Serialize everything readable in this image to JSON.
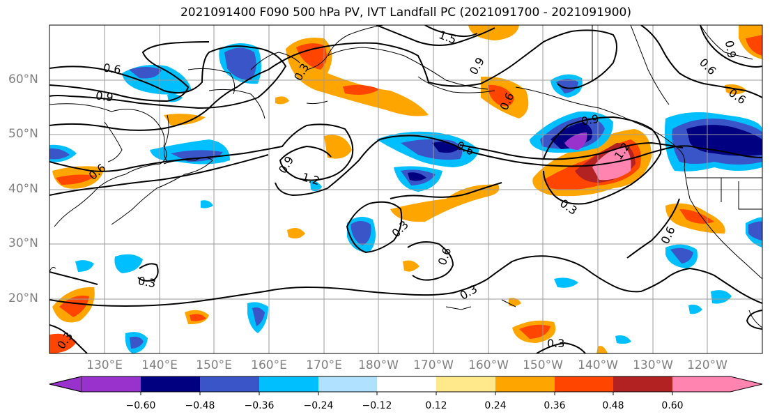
{
  "title": "2021091400 F090 500 hPa PV, IVT Landfall PC (2021091700 - 2021091900)",
  "axes": {
    "lat_labels": [
      "60°N",
      "50°N",
      "40°N",
      "30°N",
      "20°N"
    ],
    "lon_labels": [
      "130°E",
      "140°E",
      "150°E",
      "160°E",
      "170°E",
      "180°W",
      "170°W",
      "160°W",
      "150°W",
      "140°W",
      "130°W",
      "120°W"
    ]
  },
  "contour_labels": [
    "1.5",
    "0.6",
    "0.9",
    "0.3",
    "0.9",
    "1.2",
    "0.9",
    "0.6",
    "0.3",
    "0.6",
    "0.9",
    "1.2",
    "0.3",
    "0.6",
    "0.3",
    "0.6",
    "0.3",
    "0.3",
    "0.6",
    "0.9",
    "0.6",
    "0.6",
    "0.3"
  ],
  "colorbar": {
    "ticks": [
      "−0.60",
      "−0.48",
      "−0.36",
      "−0.24",
      "−0.12",
      "0.12",
      "0.24",
      "0.36",
      "0.48",
      "0.60"
    ],
    "colors": [
      "#9932cc",
      "#000080",
      "#3a55c8",
      "#00bfff",
      "#b0e2ff",
      "#ffffff",
      "#ffe98a",
      "#ffa500",
      "#ff4500",
      "#b22222",
      "#ff85b0"
    ]
  }
}
